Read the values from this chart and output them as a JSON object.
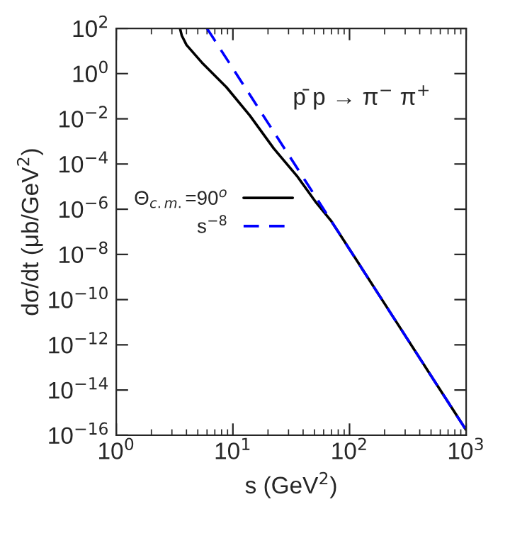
{
  "chart_data": {
    "type": "line",
    "xlabel": "s (GeV$^{2}$)",
    "ylabel": "dσ/dt (μb/GeV$^{2}$)",
    "log": "xy",
    "xlim": [
      1,
      1000
    ],
    "ylim": [
      1e-16,
      100
    ],
    "xticks": [
      {
        "value": 1,
        "label": "10$^{0}$"
      },
      {
        "value": 10,
        "label": "10$^{1}$"
      },
      {
        "value": 100,
        "label": "10$^{2}$"
      },
      {
        "value": 1000,
        "label": "10$^{3}$"
      }
    ],
    "yticks": [
      {
        "value": 1e-16,
        "label": "10$^{−16}$"
      },
      {
        "value": 1e-14,
        "label": "10$^{−14}$"
      },
      {
        "value": 1e-12,
        "label": "10$^{−12}$"
      },
      {
        "value": 1e-10,
        "label": "10$^{−10}$"
      },
      {
        "value": 1e-08,
        "label": "10$^{−8}$"
      },
      {
        "value": 1e-06,
        "label": "10$^{−6}$"
      },
      {
        "value": 0.0001,
        "label": "10$^{−4}$"
      },
      {
        "value": 0.01,
        "label": "10$^{−2}$"
      },
      {
        "value": 1,
        "label": "10$^{0}$"
      },
      {
        "value": 100,
        "label": "10$^{2}$"
      }
    ],
    "annotations": [
      "p̄ p → π$^{−}$ π$^{+}$"
    ],
    "legend": "left",
    "grid": false,
    "series": [
      {
        "name": "Θ$_{c.m.}$=90$^{o}$",
        "color": "#000000",
        "line_style": "solid",
        "x": [
          3.52,
          3.64,
          4.0,
          5.55,
          8.8,
          14,
          22.4,
          35.9,
          52,
          70,
          100,
          200,
          500,
          1000
        ],
        "values": [
          100,
          49,
          18.6,
          2.7,
          0.25,
          0.0138,
          0.00049,
          2.7e-05,
          1.9e-06,
          2.9e-07,
          1.7e-08,
          6.6e-11,
          4.3e-14,
          1.7e-16
        ]
      },
      {
        "name": "s$^{−8}$",
        "color": "#0000ff",
        "line_style": "dashed",
        "x": [
          6,
          10,
          100,
          1000
        ],
        "values": [
          100,
          1.68,
          1.68e-08,
          1.68e-16
        ]
      }
    ]
  }
}
